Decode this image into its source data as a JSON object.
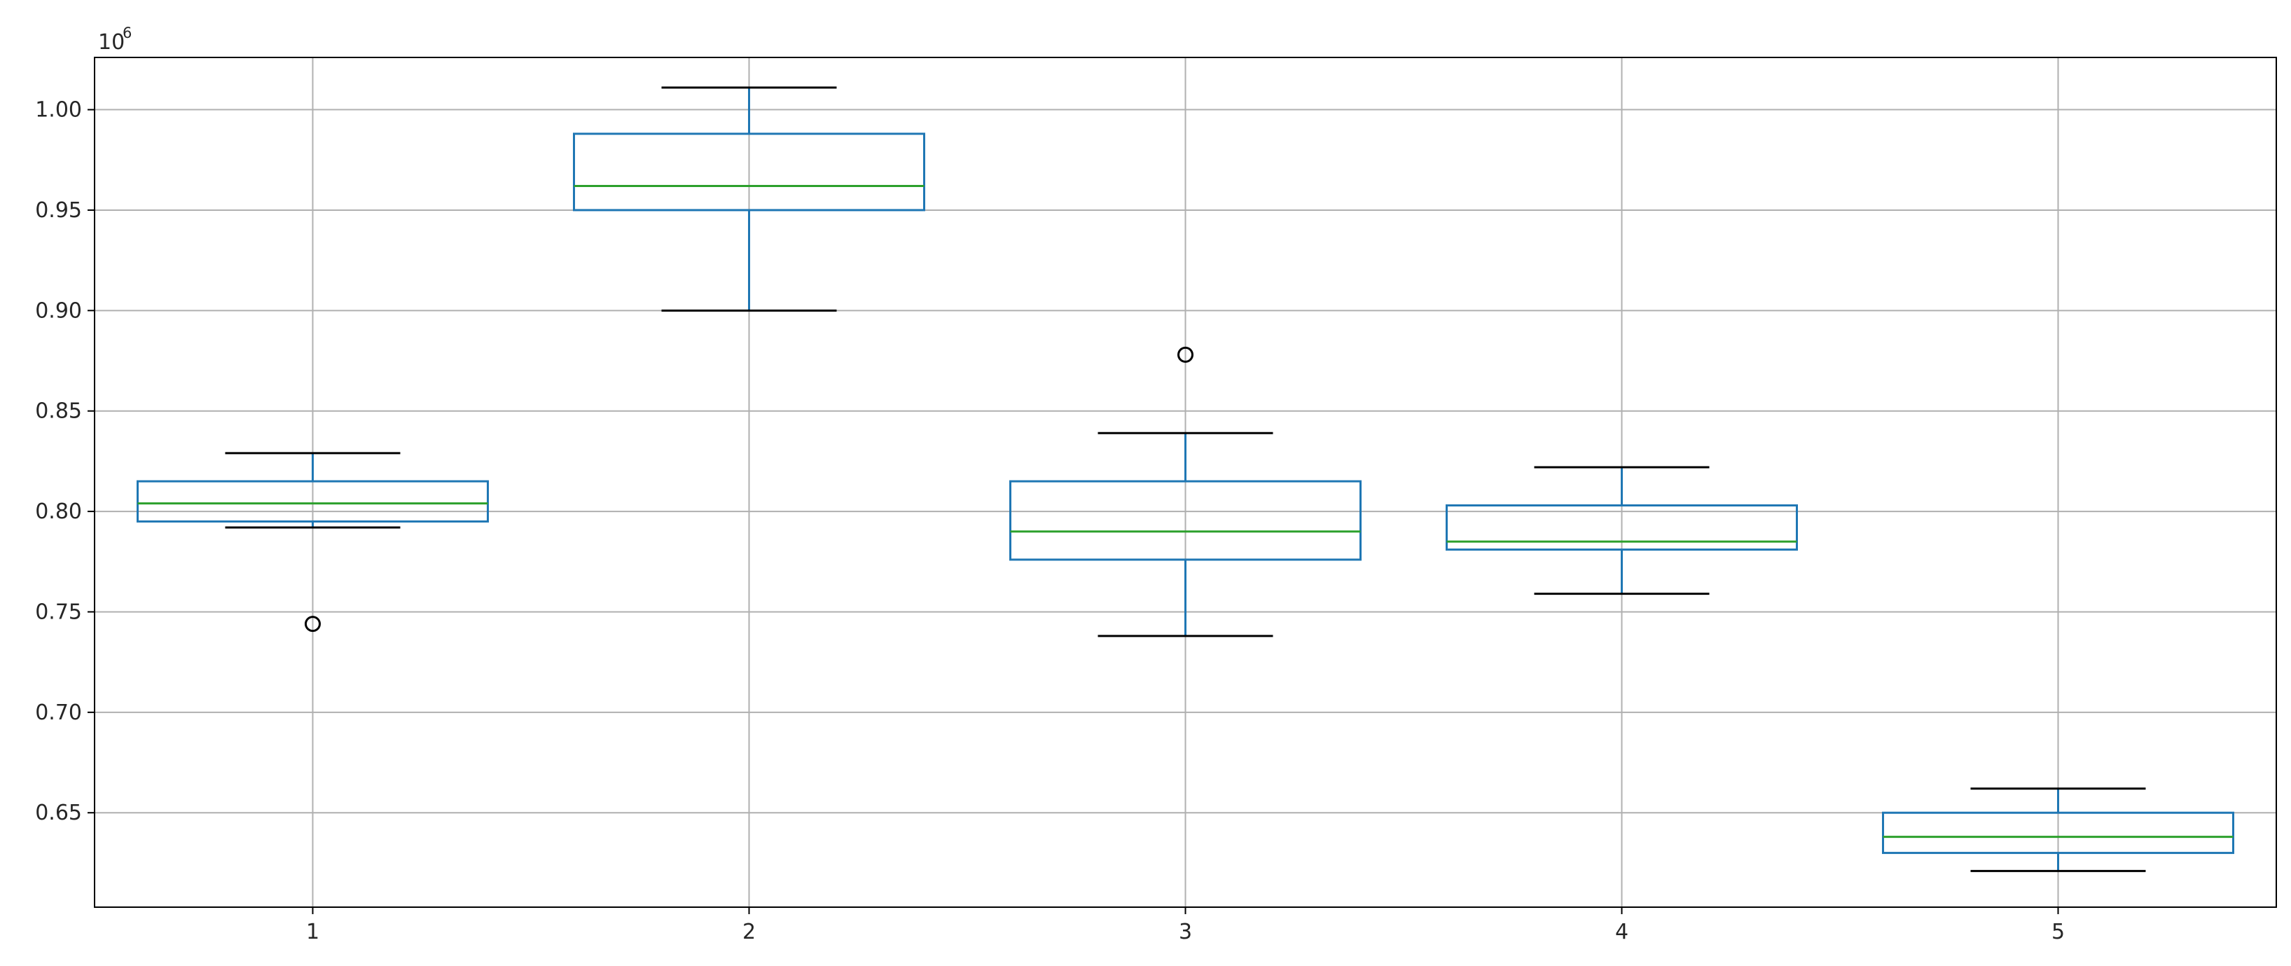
{
  "chart_data": {
    "type": "box",
    "title": "",
    "xlabel": "",
    "ylabel": "",
    "offset_text": {
      "base": "10",
      "exponent": "6"
    },
    "categories": [
      "1",
      "2",
      "3",
      "4",
      "5"
    ],
    "yticks": [
      "0.65",
      "0.70",
      "0.75",
      "0.80",
      "0.85",
      "0.90",
      "0.95",
      "1.00"
    ],
    "ylim": [
      0.603,
      1.026
    ],
    "grid": true,
    "boxes": [
      {
        "category": "1",
        "whisker_low": 0.792,
        "q1": 0.795,
        "median": 0.804,
        "q3": 0.815,
        "whisker_high": 0.829,
        "outliers": [
          0.744
        ]
      },
      {
        "category": "2",
        "whisker_low": 0.9,
        "q1": 0.95,
        "median": 0.962,
        "q3": 0.988,
        "whisker_high": 1.011,
        "outliers": []
      },
      {
        "category": "3",
        "whisker_low": 0.738,
        "q1": 0.776,
        "median": 0.79,
        "q3": 0.815,
        "whisker_high": 0.839,
        "outliers": [
          0.878
        ]
      },
      {
        "category": "4",
        "whisker_low": 0.759,
        "q1": 0.781,
        "median": 0.785,
        "q3": 0.803,
        "whisker_high": 0.822,
        "outliers": []
      },
      {
        "category": "5",
        "whisker_low": 0.621,
        "q1": 0.63,
        "median": 0.638,
        "q3": 0.65,
        "whisker_high": 0.662,
        "outliers": []
      }
    ],
    "colors": {
      "box": "#1f77b4",
      "median": "#2ca02c",
      "whisker_cap": "#000000",
      "grid": "#b0b0b0",
      "spine": "#000000"
    }
  }
}
